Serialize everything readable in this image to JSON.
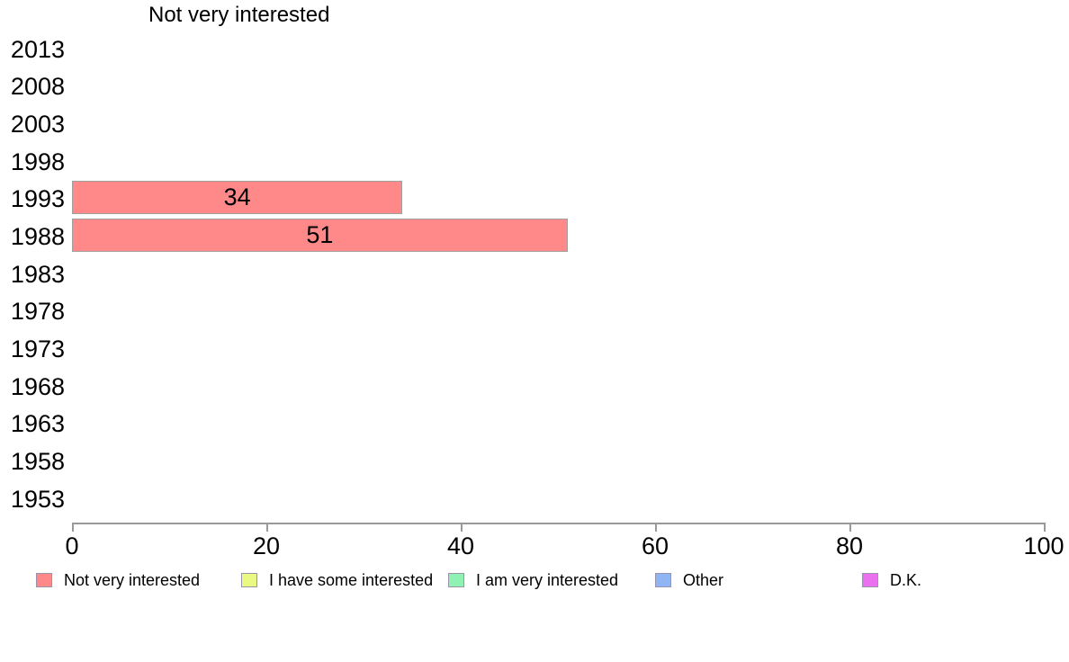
{
  "chart_data": {
    "type": "bar",
    "orientation": "horizontal",
    "title": "Not very interested",
    "categories": [
      "2013",
      "2008",
      "2003",
      "1998",
      "1993",
      "1988",
      "1983",
      "1978",
      "1973",
      "1968",
      "1963",
      "1958",
      "1953"
    ],
    "series": [
      {
        "name": "Not very interested",
        "color": "#ff8888",
        "values": [
          null,
          null,
          null,
          null,
          34,
          51,
          null,
          null,
          null,
          null,
          null,
          null,
          null
        ]
      }
    ],
    "xlabel": "",
    "ylabel": "",
    "xlim": [
      0,
      100
    ],
    "xticks": [
      0,
      20,
      40,
      60,
      80,
      100
    ],
    "grid": false,
    "legend_position": "bottom",
    "legend": [
      {
        "label": "Not very interested",
        "color": "#ff8888"
      },
      {
        "label": "I have some interested",
        "color": "#eaf982"
      },
      {
        "label": "I am very interested",
        "color": "#8df2b2"
      },
      {
        "label": "Other",
        "color": "#8fb5f5"
      },
      {
        "label": "D.K.",
        "color": "#ea70f0"
      }
    ],
    "colors": {
      "bar_fill": "#ff8888",
      "bar_border": "#a0a0a0",
      "axis": "#999999",
      "text": "#000000",
      "background": "#ffffff"
    }
  }
}
